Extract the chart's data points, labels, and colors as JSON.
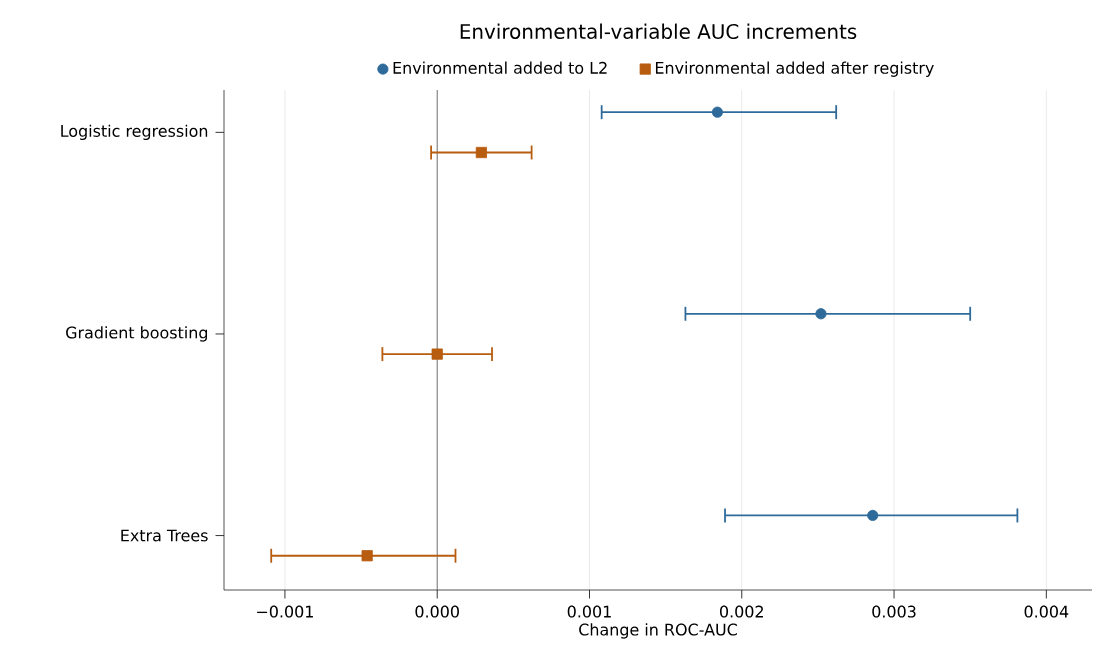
{
  "chart_data": {
    "type": "scatter",
    "orientation": "horizontal",
    "title": "Environmental-variable AUC increments",
    "xlabel": "Change in ROC-AUC",
    "categories": [
      "Logistic regression",
      "Gradient boosting",
      "Extra Trees"
    ],
    "series": [
      {
        "name": "Environmental added to L2",
        "color": "#2f6b9a",
        "marker": "circle",
        "values": [
          0.00184,
          0.00252,
          0.00286
        ],
        "errors": [
          [
            0.00108,
            0.00262
          ],
          [
            0.00163,
            0.0035
          ],
          [
            0.00189,
            0.00381
          ]
        ]
      },
      {
        "name": "Environmental added after registry",
        "color": "#b85c0f",
        "marker": "square",
        "values": [
          0.00029,
          0.0,
          -0.00046
        ],
        "errors": [
          [
            -4e-05,
            0.00062
          ],
          [
            -0.00036,
            0.00036
          ],
          [
            -0.00109,
            0.00012
          ]
        ]
      }
    ],
    "xlim": [
      -0.0014,
      0.0043
    ],
    "xticks": [
      {
        "value": -0.001,
        "label": "−0.001"
      },
      {
        "value": 0,
        "label": "0.000"
      },
      {
        "value": 0.001,
        "label": "0.001"
      },
      {
        "value": 0.002,
        "label": "0.002"
      },
      {
        "value": 0.003,
        "label": "0.003"
      },
      {
        "value": 0.004,
        "label": "0.004"
      }
    ],
    "ref_lines": [
      {
        "axis": "x",
        "value": 0,
        "color": "#555555"
      }
    ],
    "grid": "x",
    "legend": "top"
  }
}
